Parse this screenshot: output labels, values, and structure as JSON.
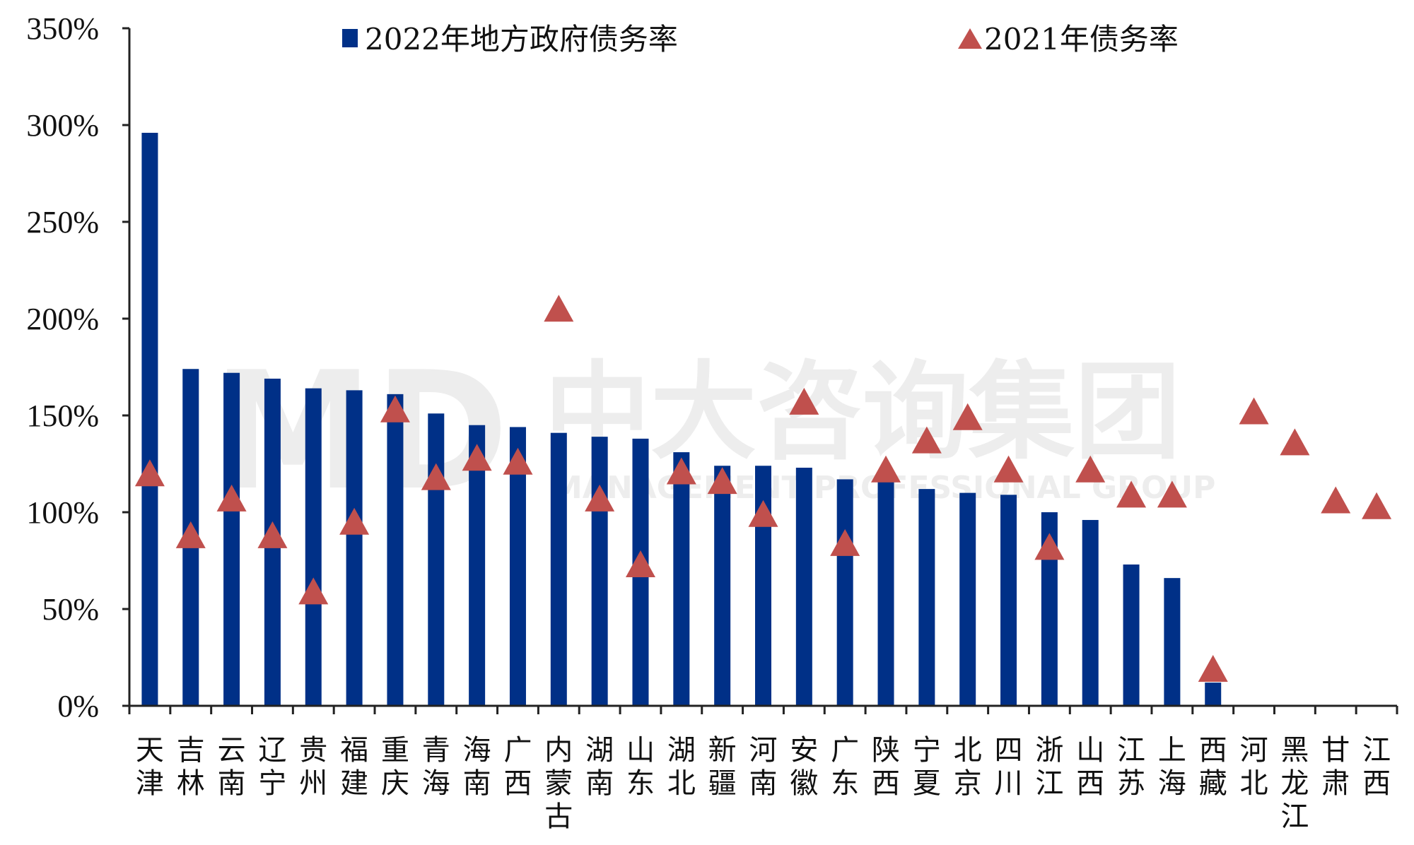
{
  "watermark": {
    "cn": "中大咨询集团",
    "en": "MANAGEMENT PROFESSIONAL GROUP",
    "logo": "MD"
  },
  "colors": {
    "bar": "#003087",
    "triangle": "#C0504D"
  },
  "chart_data": {
    "type": "bar",
    "title": "",
    "xlabel": "",
    "ylabel": "",
    "ylim": [
      0,
      3.5
    ],
    "yticks": [
      "0%",
      "50%",
      "100%",
      "150%",
      "200%",
      "250%",
      "300%",
      "350%"
    ],
    "grid": false,
    "legend_position": "top",
    "categories": [
      "天津",
      "吉林",
      "云南",
      "辽宁",
      "贵州",
      "福建",
      "重庆",
      "青海",
      "海南",
      "广西",
      "内蒙古",
      "湖南",
      "山东",
      "湖北",
      "新疆",
      "河南",
      "安徽",
      "广东",
      "陕西",
      "宁夏",
      "北京",
      "四川",
      "浙江",
      "山西",
      "江苏",
      "上海",
      "西藏",
      "河北",
      "黑龙江",
      "甘肃",
      "江西"
    ],
    "series": [
      {
        "name": "2022年地方政府债务率",
        "type": "bar",
        "values": [
          2.96,
          1.74,
          1.72,
          1.69,
          1.64,
          1.63,
          1.61,
          1.51,
          1.45,
          1.44,
          1.41,
          1.39,
          1.38,
          1.31,
          1.24,
          1.24,
          1.23,
          1.17,
          1.16,
          1.12,
          1.1,
          1.09,
          1.0,
          0.96,
          0.73,
          0.66,
          0.12,
          null,
          null,
          null,
          null
        ]
      },
      {
        "name": "2021年债务率",
        "type": "scatter",
        "marker": "triangle",
        "values": [
          1.2,
          0.88,
          1.07,
          0.88,
          0.59,
          0.95,
          1.53,
          1.18,
          1.28,
          1.26,
          2.05,
          1.07,
          0.73,
          1.21,
          1.16,
          0.99,
          1.57,
          0.84,
          1.22,
          1.37,
          1.49,
          1.22,
          0.82,
          1.22,
          1.09,
          1.09,
          0.19,
          1.52,
          1.36,
          1.06,
          1.03
        ]
      }
    ]
  }
}
